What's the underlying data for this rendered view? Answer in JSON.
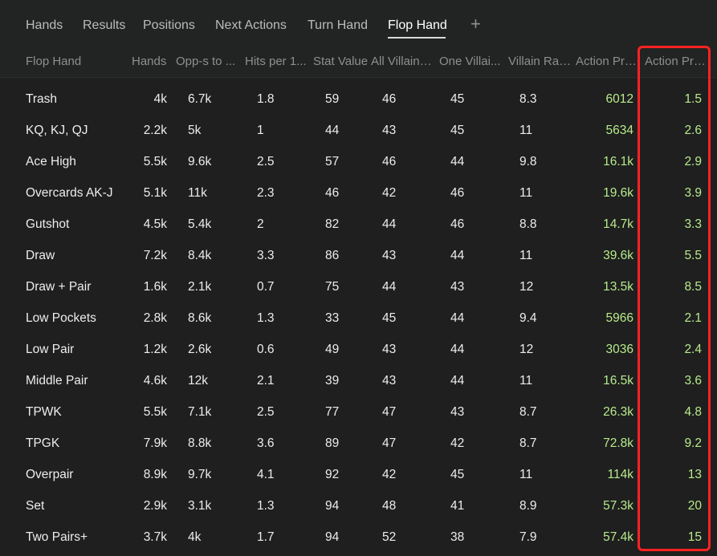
{
  "tabs": [
    {
      "label": "Hands",
      "active": false
    },
    {
      "label": "Results",
      "active": false
    },
    {
      "label": "Positions",
      "active": false
    },
    {
      "label": "Next Actions",
      "active": false
    },
    {
      "label": "Turn Hand",
      "active": false
    },
    {
      "label": "Flop Hand",
      "active": true
    }
  ],
  "add_tab_label": "+",
  "columns": [
    "Flop Hand",
    "Hands",
    "Opp-s to ...",
    "Hits per 1...",
    "Stat Value",
    "All Villains...",
    "One Villai...",
    "Villain Raise",
    "Action Pro...",
    "Action Pro..."
  ],
  "rows": [
    [
      "Trash",
      "4k",
      "6.7k",
      "1.8",
      "59",
      "46",
      "45",
      "8.3",
      "6012",
      "1.5"
    ],
    [
      "KQ, KJ, QJ",
      "2.2k",
      "5k",
      "1",
      "44",
      "43",
      "45",
      "11",
      "5634",
      "2.6"
    ],
    [
      "Ace High",
      "5.5k",
      "9.6k",
      "2.5",
      "57",
      "46",
      "44",
      "9.8",
      "16.1k",
      "2.9"
    ],
    [
      "Overcards AK-J",
      "5.1k",
      "11k",
      "2.3",
      "46",
      "42",
      "46",
      "11",
      "19.6k",
      "3.9"
    ],
    [
      "Gutshot",
      "4.5k",
      "5.4k",
      "2",
      "82",
      "44",
      "46",
      "8.8",
      "14.7k",
      "3.3"
    ],
    [
      "Draw",
      "7.2k",
      "8.4k",
      "3.3",
      "86",
      "43",
      "44",
      "11",
      "39.6k",
      "5.5"
    ],
    [
      "Draw + Pair",
      "1.6k",
      "2.1k",
      "0.7",
      "75",
      "44",
      "43",
      "12",
      "13.5k",
      "8.5"
    ],
    [
      "Low Pockets",
      "2.8k",
      "8.6k",
      "1.3",
      "33",
      "45",
      "44",
      "9.4",
      "5966",
      "2.1"
    ],
    [
      "Low Pair",
      "1.2k",
      "2.6k",
      "0.6",
      "49",
      "43",
      "44",
      "12",
      "3036",
      "2.4"
    ],
    [
      "Middle Pair",
      "4.6k",
      "12k",
      "2.1",
      "39",
      "43",
      "44",
      "11",
      "16.5k",
      "3.6"
    ],
    [
      "TPWK",
      "5.5k",
      "7.1k",
      "2.5",
      "77",
      "47",
      "43",
      "8.7",
      "26.3k",
      "4.8"
    ],
    [
      "TPGK",
      "7.9k",
      "8.8k",
      "3.6",
      "89",
      "47",
      "42",
      "8.7",
      "72.8k",
      "9.2"
    ],
    [
      "Overpair",
      "8.9k",
      "9.7k",
      "4.1",
      "92",
      "42",
      "45",
      "11",
      "114k",
      "13"
    ],
    [
      "Set",
      "2.9k",
      "3.1k",
      "1.3",
      "94",
      "48",
      "41",
      "8.9",
      "57.3k",
      "20"
    ],
    [
      "Two Pairs+",
      "3.7k",
      "4k",
      "1.7",
      "94",
      "52",
      "38",
      "7.9",
      "57.4k",
      "15"
    ]
  ],
  "colors": {
    "background": "#1e1f1e",
    "value_green": "#b8ea8d",
    "highlight_border": "#ff2222"
  }
}
